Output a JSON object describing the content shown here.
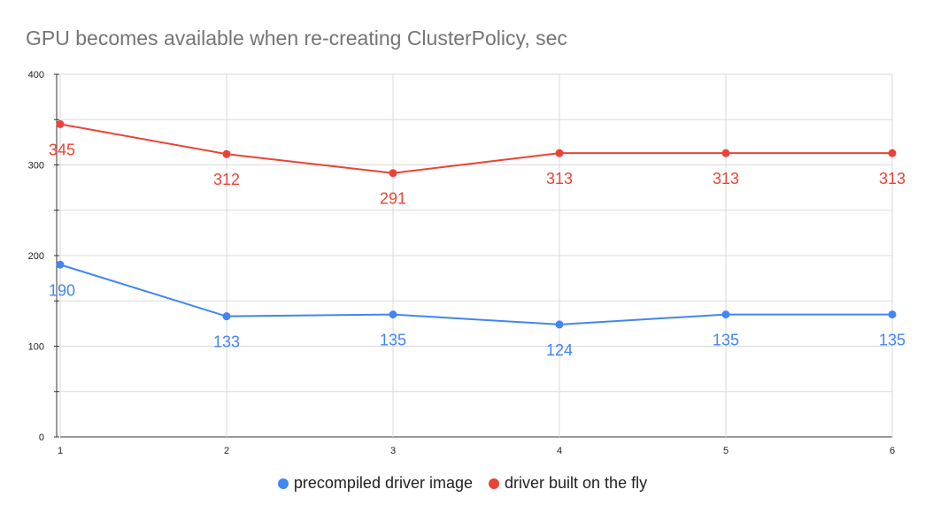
{
  "chart_data": {
    "type": "line",
    "title": "GPU becomes available when re-creating ClusterPolicy, sec",
    "xlabel": "",
    "ylabel": "",
    "categories": [
      "1",
      "2",
      "3",
      "4",
      "5",
      "6"
    ],
    "yticks": [
      "0",
      "100",
      "200",
      "300",
      "400"
    ],
    "ylim": [
      0,
      400
    ],
    "grid": true,
    "legend_position": "bottom",
    "series": [
      {
        "name": "precompiled driver image",
        "color": "#4285f4",
        "values": [
          190,
          133,
          135,
          124,
          135,
          135
        ],
        "labels": [
          "190",
          "133",
          "135",
          "124",
          "135",
          "135"
        ]
      },
      {
        "name": "driver built on the fly",
        "color": "#ea4335",
        "values": [
          345,
          312,
          291,
          313,
          313,
          313
        ],
        "labels": [
          "345",
          "312",
          "291",
          "313",
          "313",
          "313"
        ]
      }
    ]
  }
}
